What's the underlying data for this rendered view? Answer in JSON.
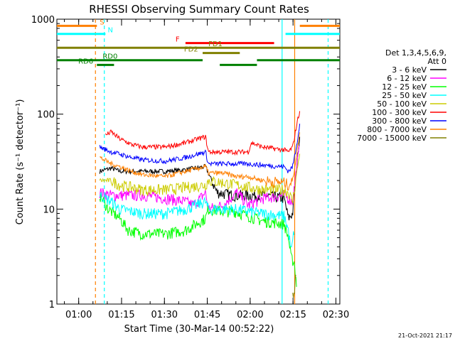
{
  "chart_data": {
    "type": "line",
    "title": "RHESSI Observing Summary Count Rates",
    "ylabel": "Count Rate (s⁻¹ detector⁻¹)",
    "xlabel": "Start Time (30-Mar-14 00:52:22)",
    "x_unit": "minutes after 00:52:22",
    "yscale": "log",
    "xlim": [
      0,
      99
    ],
    "ylim": [
      1,
      1000
    ],
    "x_ticks": [
      {
        "label": "01:00",
        "value": 7.63
      },
      {
        "label": "01:15",
        "value": 22.63
      },
      {
        "label": "01:30",
        "value": 37.63
      },
      {
        "label": "01:45",
        "value": 52.63
      },
      {
        "label": "02:00",
        "value": 67.63
      },
      {
        "label": "02:15",
        "value": 82.63
      },
      {
        "label": "02:30",
        "value": 97.63
      }
    ],
    "y_ticks": [
      {
        "label": "1",
        "value": 1
      },
      {
        "label": "10",
        "value": 10
      },
      {
        "label": "100",
        "value": 100
      },
      {
        "label": "1000",
        "value": 1000
      }
    ],
    "legend": {
      "placement": "right",
      "header": [
        "Det 1,3,4,5,6,9,",
        "Att 0"
      ],
      "entries": [
        {
          "name": "3 - 6 keV",
          "color": "#000000"
        },
        {
          "name": "6 - 12 keV",
          "color": "#ff00ff"
        },
        {
          "name": "12 - 25 keV",
          "color": "#00ff00"
        },
        {
          "name": "25 - 50 keV",
          "color": "#00ffff"
        },
        {
          "name": "50 - 100 keV",
          "color": "#cccc00"
        },
        {
          "name": "100 - 300 keV",
          "color": "#ff0000"
        },
        {
          "name": "300 - 800 keV",
          "color": "#0000ff"
        },
        {
          "name": "800 - 7000 keV",
          "color": "#ff8000"
        },
        {
          "name": "7000 - 15000 keV",
          "color": "#808000"
        }
      ]
    },
    "flag_bars": [
      {
        "label": "S",
        "color": "#ff8000",
        "level": 850,
        "segments": [
          [
            0,
            14
          ],
          [
            85,
            99
          ]
        ],
        "label_x": 15
      },
      {
        "label": "N",
        "color": "#00ffff",
        "level": 700,
        "segments": [
          [
            0,
            17
          ],
          [
            80,
            99
          ]
        ],
        "label_x": 17.8
      },
      {
        "label": "F",
        "color": "#ff0000",
        "level": 560,
        "segments": [
          [
            45,
            76
          ]
        ],
        "label_x": 41.5
      },
      {
        "label": "FD1",
        "color": "#808000",
        "level": 500,
        "segments": [
          [
            0,
            99
          ]
        ],
        "label_x": 53
      },
      {
        "label": "FD2",
        "color": "#808000",
        "level": 440,
        "segments": [
          [
            51,
            64
          ]
        ],
        "label_x": 44.5
      },
      {
        "label": "RD0",
        "color": "#008000",
        "level": 370,
        "segments": [
          [
            0,
            51
          ],
          [
            70,
            99
          ]
        ],
        "label_x": 16
      },
      {
        "label": "RD6",
        "color": "#008000",
        "level": 330,
        "segments": [
          [
            14,
            20
          ],
          [
            57,
            70
          ]
        ],
        "label_x": 7.5
      }
    ],
    "vlines": [
      {
        "x": 13.5,
        "color": "#ff8000",
        "dashed": true
      },
      {
        "x": 16.6,
        "color": "#00ffff",
        "dashed": true
      },
      {
        "x": 78.8,
        "color": "#00ffff",
        "dashed": false
      },
      {
        "x": 83.2,
        "color": "#ff8000",
        "dashed": false
      },
      {
        "x": 94.9,
        "color": "#00ffff",
        "dashed": true
      }
    ],
    "series": [
      {
        "name": "3 - 6 keV",
        "color": "#000000",
        "x": [
          15,
          19,
          22,
          30,
          38,
          45,
          52,
          56,
          62,
          68,
          72,
          79.5,
          81,
          82.5,
          84,
          85
        ],
        "y": [
          25,
          27,
          25,
          25,
          25,
          26,
          28,
          15,
          14,
          14,
          14,
          13,
          8,
          9,
          30,
          60
        ]
      },
      {
        "name": "6 - 12 keV",
        "color": "#ff00ff",
        "x": [
          15,
          19,
          22,
          30,
          38,
          45,
          48,
          52,
          53,
          58,
          63,
          67,
          72,
          79.5,
          81,
          82.5,
          84,
          85
        ],
        "y": [
          15,
          14,
          14,
          14,
          13,
          12,
          11,
          15,
          10,
          11,
          15,
          11,
          13,
          14,
          13,
          12,
          30,
          50
        ]
      },
      {
        "name": "12 - 25 keV",
        "color": "#00ff00",
        "x": [
          15,
          18,
          22,
          25,
          30,
          38,
          45,
          52,
          53,
          58,
          62,
          67,
          72,
          79.5,
          81,
          82,
          83,
          84
        ],
        "y": [
          14,
          10,
          8,
          6,
          5.5,
          5.5,
          6,
          8,
          10,
          9.5,
          9.5,
          8.5,
          7.5,
          7,
          5,
          3,
          2.8,
          1.5
        ]
      },
      {
        "name": "25 - 50 keV",
        "color": "#00ffff",
        "x": [
          15,
          19,
          22,
          30,
          38,
          45,
          52,
          53,
          58,
          63,
          67,
          72,
          79.5,
          81,
          82,
          83
        ],
        "y": [
          14,
          12,
          10,
          9,
          9,
          10,
          12,
          10,
          10,
          10,
          9.5,
          9,
          8.5,
          6,
          3.5,
          6
        ]
      },
      {
        "name": "50 - 100 keV",
        "color": "#cccc00",
        "x": [
          15,
          19,
          22,
          30,
          38,
          45,
          52,
          53,
          58,
          63,
          67,
          72,
          79.5,
          81,
          82.5,
          84,
          85
        ],
        "y": [
          20,
          20,
          18,
          16,
          16,
          17,
          18,
          20,
          19,
          18,
          17,
          16,
          16,
          15,
          12,
          25,
          40
        ]
      },
      {
        "name": "100 - 300 keV",
        "color": "#ff0000",
        "x": [
          17,
          19,
          22,
          26,
          30,
          38,
          45,
          52,
          53,
          67,
          68,
          72,
          79.5,
          81,
          82.5,
          84,
          85
        ],
        "y": [
          60,
          65,
          55,
          48,
          45,
          45,
          50,
          58,
          40,
          40,
          50,
          45,
          42,
          40,
          45,
          80,
          110
        ]
      },
      {
        "name": "300 - 800 keV",
        "color": "#0000ff",
        "x": [
          15,
          19,
          22,
          26,
          30,
          38,
          45,
          52,
          53,
          67,
          72,
          79.5,
          81,
          82.5,
          84,
          85
        ],
        "y": [
          45,
          40,
          38,
          35,
          33,
          32,
          35,
          40,
          30,
          30,
          29,
          28,
          25,
          28,
          50,
          80
        ]
      },
      {
        "name": "800 - 7000 keV",
        "color": "#ff8000",
        "x": [
          15,
          19,
          22,
          26,
          30,
          38,
          45,
          52,
          53,
          58,
          63,
          67,
          72,
          79.5,
          81,
          82.5,
          84,
          85
        ],
        "y": [
          35,
          30,
          28,
          25,
          23,
          22,
          25,
          28,
          24,
          24,
          22,
          22,
          20,
          19,
          18,
          20,
          40,
          65
        ]
      },
      {
        "name": "7000 - 15000 keV",
        "color": "#808000",
        "x": [
          82.5,
          83.2,
          83.8
        ],
        "y": [
          1.2,
          1.5,
          2.5
        ]
      }
    ]
  },
  "footer": {
    "timestamp": "21-Oct-2021 21:17"
  }
}
